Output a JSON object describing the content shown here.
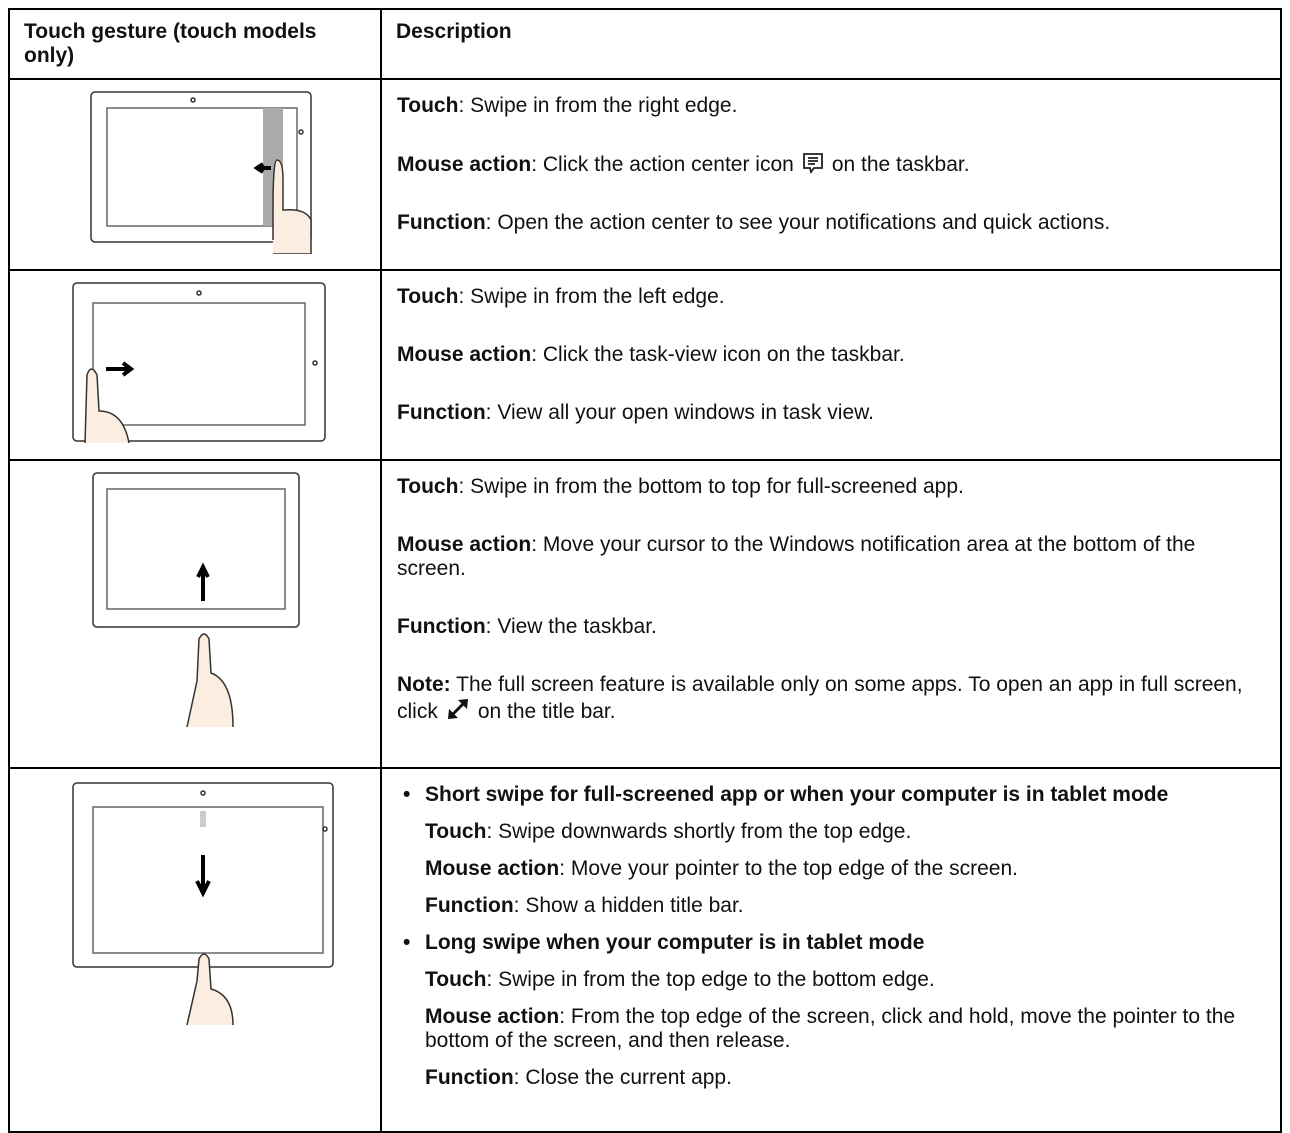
{
  "table": {
    "headers": [
      "Touch gesture (touch models only)",
      "Description"
    ],
    "rows": [
      {
        "paragraphs": [
          {
            "label": "Touch",
            "text": ": Swipe in from the right edge."
          },
          {
            "label": "Mouse action",
            "text": ": Click the action center icon",
            "text_after": "on the taskbar."
          },
          {
            "label": "Function",
            "text": ": Open the action center to see your notifications and quick actions."
          }
        ]
      },
      {
        "paragraphs": [
          {
            "label": "Touch",
            "text": ": Swipe in from the left edge."
          },
          {
            "label": "Mouse action",
            "text": ": Click the task-view icon on the taskbar."
          },
          {
            "label": "Function",
            "text": ": View all your open windows in task view."
          }
        ]
      },
      {
        "paragraphs": [
          {
            "label": "Touch",
            "text": ": Swipe in from the bottom to top for full-screened app."
          },
          {
            "label": "Mouse action",
            "text": ": Move your cursor to the Windows notification area at the bottom of the screen."
          },
          {
            "label": "Function",
            "text": ": View the taskbar."
          },
          {
            "label": "Note:",
            "text": "The full screen feature is available only on some apps. To open an app in full screen, click",
            "text_after": "on the title bar."
          }
        ]
      },
      {
        "bullets": [
          {
            "heading": "Short swipe for full-screened app or when your computer is in tablet mode",
            "items": [
              {
                "label": "Touch",
                "text": ": Swipe downwards shortly from the top edge."
              },
              {
                "label": "Mouse action",
                "text": ": Move your pointer to the top edge of the screen."
              },
              {
                "label": "Function",
                "text": ": Show a hidden title bar."
              }
            ]
          },
          {
            "heading": "Long swipe when your computer is in tablet mode",
            "items": [
              {
                "label": "Touch",
                "text": ": Swipe in from the top edge to the bottom edge."
              },
              {
                "label": "Mouse action",
                "text": ": From the top edge of the screen, click and hold, move the pointer to the bottom of the screen, and then release."
              },
              {
                "label": "Function",
                "text": ": Close the current app."
              }
            ]
          }
        ]
      }
    ]
  }
}
